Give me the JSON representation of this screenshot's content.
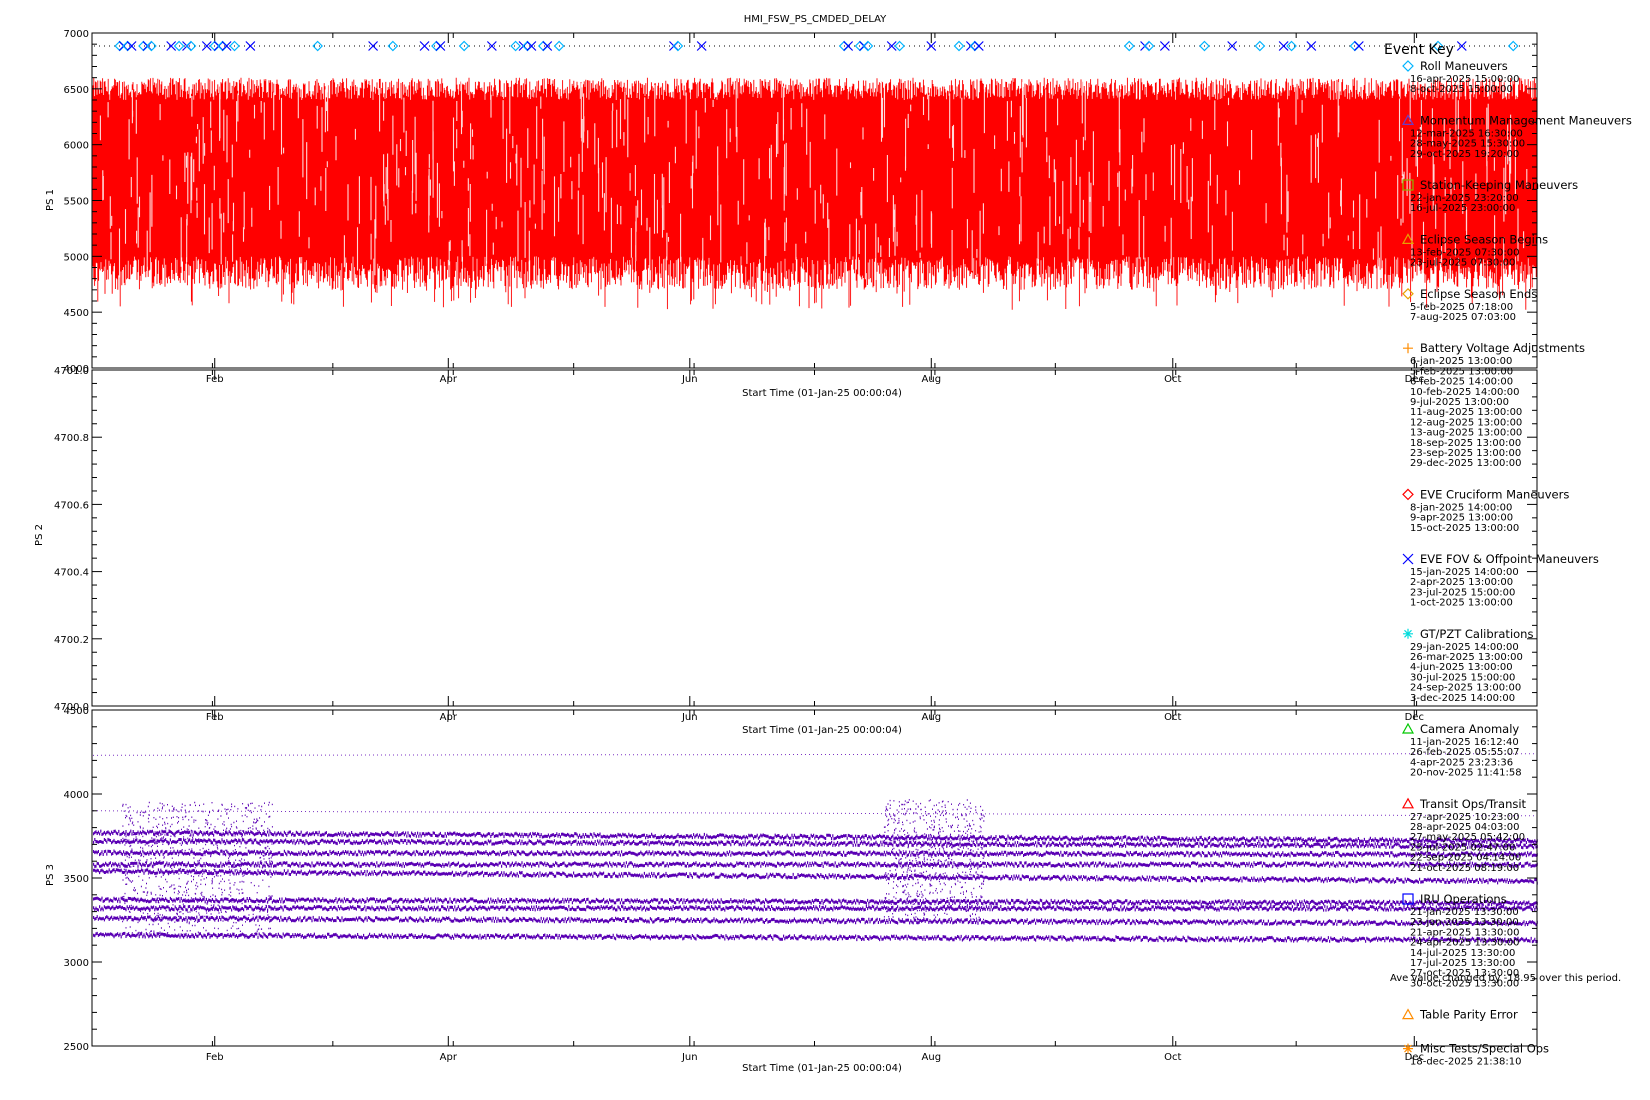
{
  "chart_data": {
    "type": "scatter",
    "title": "HMI_FSW_PS_CMDED_DELAY",
    "xlabel": "Start Time (01-Jan-25 00:00:04)",
    "x_tick_labels": [
      "Feb",
      "Apr",
      "Jun",
      "Aug",
      "Oct",
      "Dec"
    ],
    "x_tick_days": [
      31,
      90,
      151,
      212,
      273,
      334
    ],
    "xlim_days": [
      0,
      365
    ],
    "panels": [
      {
        "ylabel": "PS 1",
        "ylim": [
          4000,
          7000
        ],
        "yticks": [
          4000,
          4500,
          5000,
          5500,
          6000,
          6500,
          7000
        ],
        "ytick_labels": [
          "4000",
          "4500",
          "5000",
          "5500",
          "6000",
          "6500",
          "7000"
        ],
        "color": "#ff0000",
        "band": [
          4700,
          6600
        ],
        "dense_band": [
          5000,
          6400
        ]
      },
      {
        "ylabel": "PS 2",
        "ylim": [
          4700.0,
          4701.0
        ],
        "yticks": [
          4700.0,
          4700.2,
          4700.4,
          4700.6,
          4700.8,
          4701.0
        ],
        "ytick_labels": [
          "4700.0",
          "4700.2",
          "4700.4",
          "4700.6",
          "4700.8",
          "4701.0"
        ],
        "color": "#000000"
      },
      {
        "ylabel": "PS 3",
        "ylim": [
          2500,
          4500
        ],
        "yticks": [
          2500,
          3000,
          3500,
          4000,
          4500
        ],
        "ytick_labels": [
          "2500",
          "3000",
          "3500",
          "4000",
          "4500"
        ],
        "color": "#5a00b4",
        "levels": [
          {
            "start": 3160,
            "end": 3130
          },
          {
            "start": 3260,
            "end": 3230
          },
          {
            "start": 3320,
            "end": 3320
          },
          {
            "start": 3370,
            "end": 3350
          },
          {
            "start": 3540,
            "end": 3480
          },
          {
            "start": 3580,
            "end": 3580
          },
          {
            "start": 3650,
            "end": 3640
          },
          {
            "start": 3720,
            "end": 3690
          },
          {
            "start": 3770,
            "end": 3720
          },
          {
            "start": 3900,
            "end": 3870
          },
          {
            "start": 4230,
            "end": 4240
          }
        ]
      }
    ],
    "event_marker_days": [
      7,
      8,
      9,
      10,
      13,
      14,
      15,
      20,
      22,
      24,
      25,
      29,
      31,
      32,
      33,
      34,
      36,
      40,
      57,
      71,
      76,
      84,
      87,
      88,
      94,
      101,
      107,
      109,
      110,
      111,
      114,
      115,
      118,
      147,
      148,
      154,
      190,
      191,
      194,
      195,
      196,
      202,
      204,
      212,
      219,
      222,
      223,
      224,
      262,
      266,
      267,
      271,
      281,
      288,
      295,
      301,
      303,
      308,
      319,
      320,
      340,
      346,
      359
    ]
  },
  "legend": {
    "title": "Event Key",
    "groups": [
      {
        "label": "Roll Maneuvers",
        "symbol": "diamond",
        "color": "#00b4ff",
        "dates": [
          "16-apr-2025 15:00:00",
          "8-oct-2025 15:00:00"
        ]
      },
      {
        "label": "Momentum Management Maneuvers",
        "symbol": "triangle",
        "color": "#6a3cc8",
        "dates": [
          "12-mar-2025 16:30:00",
          "28-may-2025 15:30:00",
          "29-oct-2025 19:20:00"
        ]
      },
      {
        "label": "Station-Keeping Maneuvers",
        "symbol": "square",
        "color": "#8cb400",
        "dates": [
          "22-jan-2025 23:20:00",
          "16-jul-2025 23:00:00"
        ]
      },
      {
        "label": "Eclipse Season Begins",
        "symbol": "triangle",
        "color": "#e8a000",
        "dates": [
          "13-feb-2025 07:30:00",
          "23-jul-2025 07:30:00"
        ]
      },
      {
        "label": "Eclipse Season Ends",
        "symbol": "diamond",
        "color": "#e8a000",
        "dates": [
          "5-feb-2025 07:18:00",
          "7-aug-2025 07:03:00"
        ]
      },
      {
        "label": "Battery Voltage Adjustments",
        "symbol": "plus",
        "color": "#ff8c00",
        "dates": [
          "6-jan-2025 13:00:00",
          "5-feb-2025 13:00:00",
          "6-feb-2025 14:00:00",
          "10-feb-2025 14:00:00",
          "9-jul-2025 13:00:00",
          "11-aug-2025 13:00:00",
          "12-aug-2025 13:00:00",
          "13-aug-2025 13:00:00",
          "18-sep-2025 13:00:00",
          "23-sep-2025 13:00:00",
          "29-dec-2025 13:00:00"
        ]
      },
      {
        "label": "EVE Cruciform Maneuvers",
        "symbol": "diamond",
        "color": "#ff0000",
        "dates": [
          "8-jan-2025 14:00:00",
          "9-apr-2025 13:00:00",
          "15-oct-2025 13:00:00"
        ]
      },
      {
        "label": "EVE FOV & Offpoint Maneuvers",
        "symbol": "x",
        "color": "#0000ff",
        "dates": [
          "15-jan-2025 14:00:00",
          "2-apr-2025 13:00:00",
          "23-jul-2025 15:00:00",
          "1-oct-2025 13:00:00"
        ]
      },
      {
        "label": "GT/PZT Calibrations",
        "symbol": "asterisk",
        "color": "#00dcdc",
        "dates": [
          "29-jan-2025 14:00:00",
          "26-mar-2025 13:00:00",
          "4-jun-2025 13:00:00",
          "30-jul-2025 15:00:00",
          "24-sep-2025 13:00:00",
          "3-dec-2025 14:00:00"
        ]
      },
      {
        "label": "Camera Anomaly",
        "symbol": "triangle",
        "color": "#00c800",
        "dates": [
          "11-jan-2025 16:12:40",
          "26-feb-2025 05:55:07",
          "4-apr-2025 23:23:36",
          "20-nov-2025 11:41:58"
        ]
      },
      {
        "label": "Transit Ops/Transit",
        "symbol": "triangle",
        "color": "#ff0000",
        "dates": [
          "27-apr-2025 10:23:00",
          "28-apr-2025 04:03:00",
          "27-may-2025 05:42:00",
          "25-jul-2025 02:47:00",
          "22-sep-2025 04:14:00",
          "21-oct-2025 08:19:00"
        ]
      },
      {
        "label": "IRU Operations",
        "symbol": "square",
        "color": "#0000ff",
        "dates": [
          "21-jan-2025 13:30:00",
          "23-jan-2025 13:30:00",
          "21-apr-2025 13:30:00",
          "24-apr-2025 13:30:00",
          "14-jul-2025 13:30:00",
          "17-jul-2025 13:30:00",
          "27-oct-2025 13:30:00",
          "30-oct-2025 13:30:00"
        ]
      },
      {
        "label": "Table Parity Error",
        "symbol": "triangle",
        "color": "#ff8c00",
        "dates": []
      },
      {
        "label": "Misc Tests/Special Ops",
        "symbol": "asterisk",
        "color": "#ff8c00",
        "dates": [
          "18-dec-2025 21:38:10"
        ]
      }
    ]
  },
  "note": "Ave value changed by -18.95 over this period."
}
